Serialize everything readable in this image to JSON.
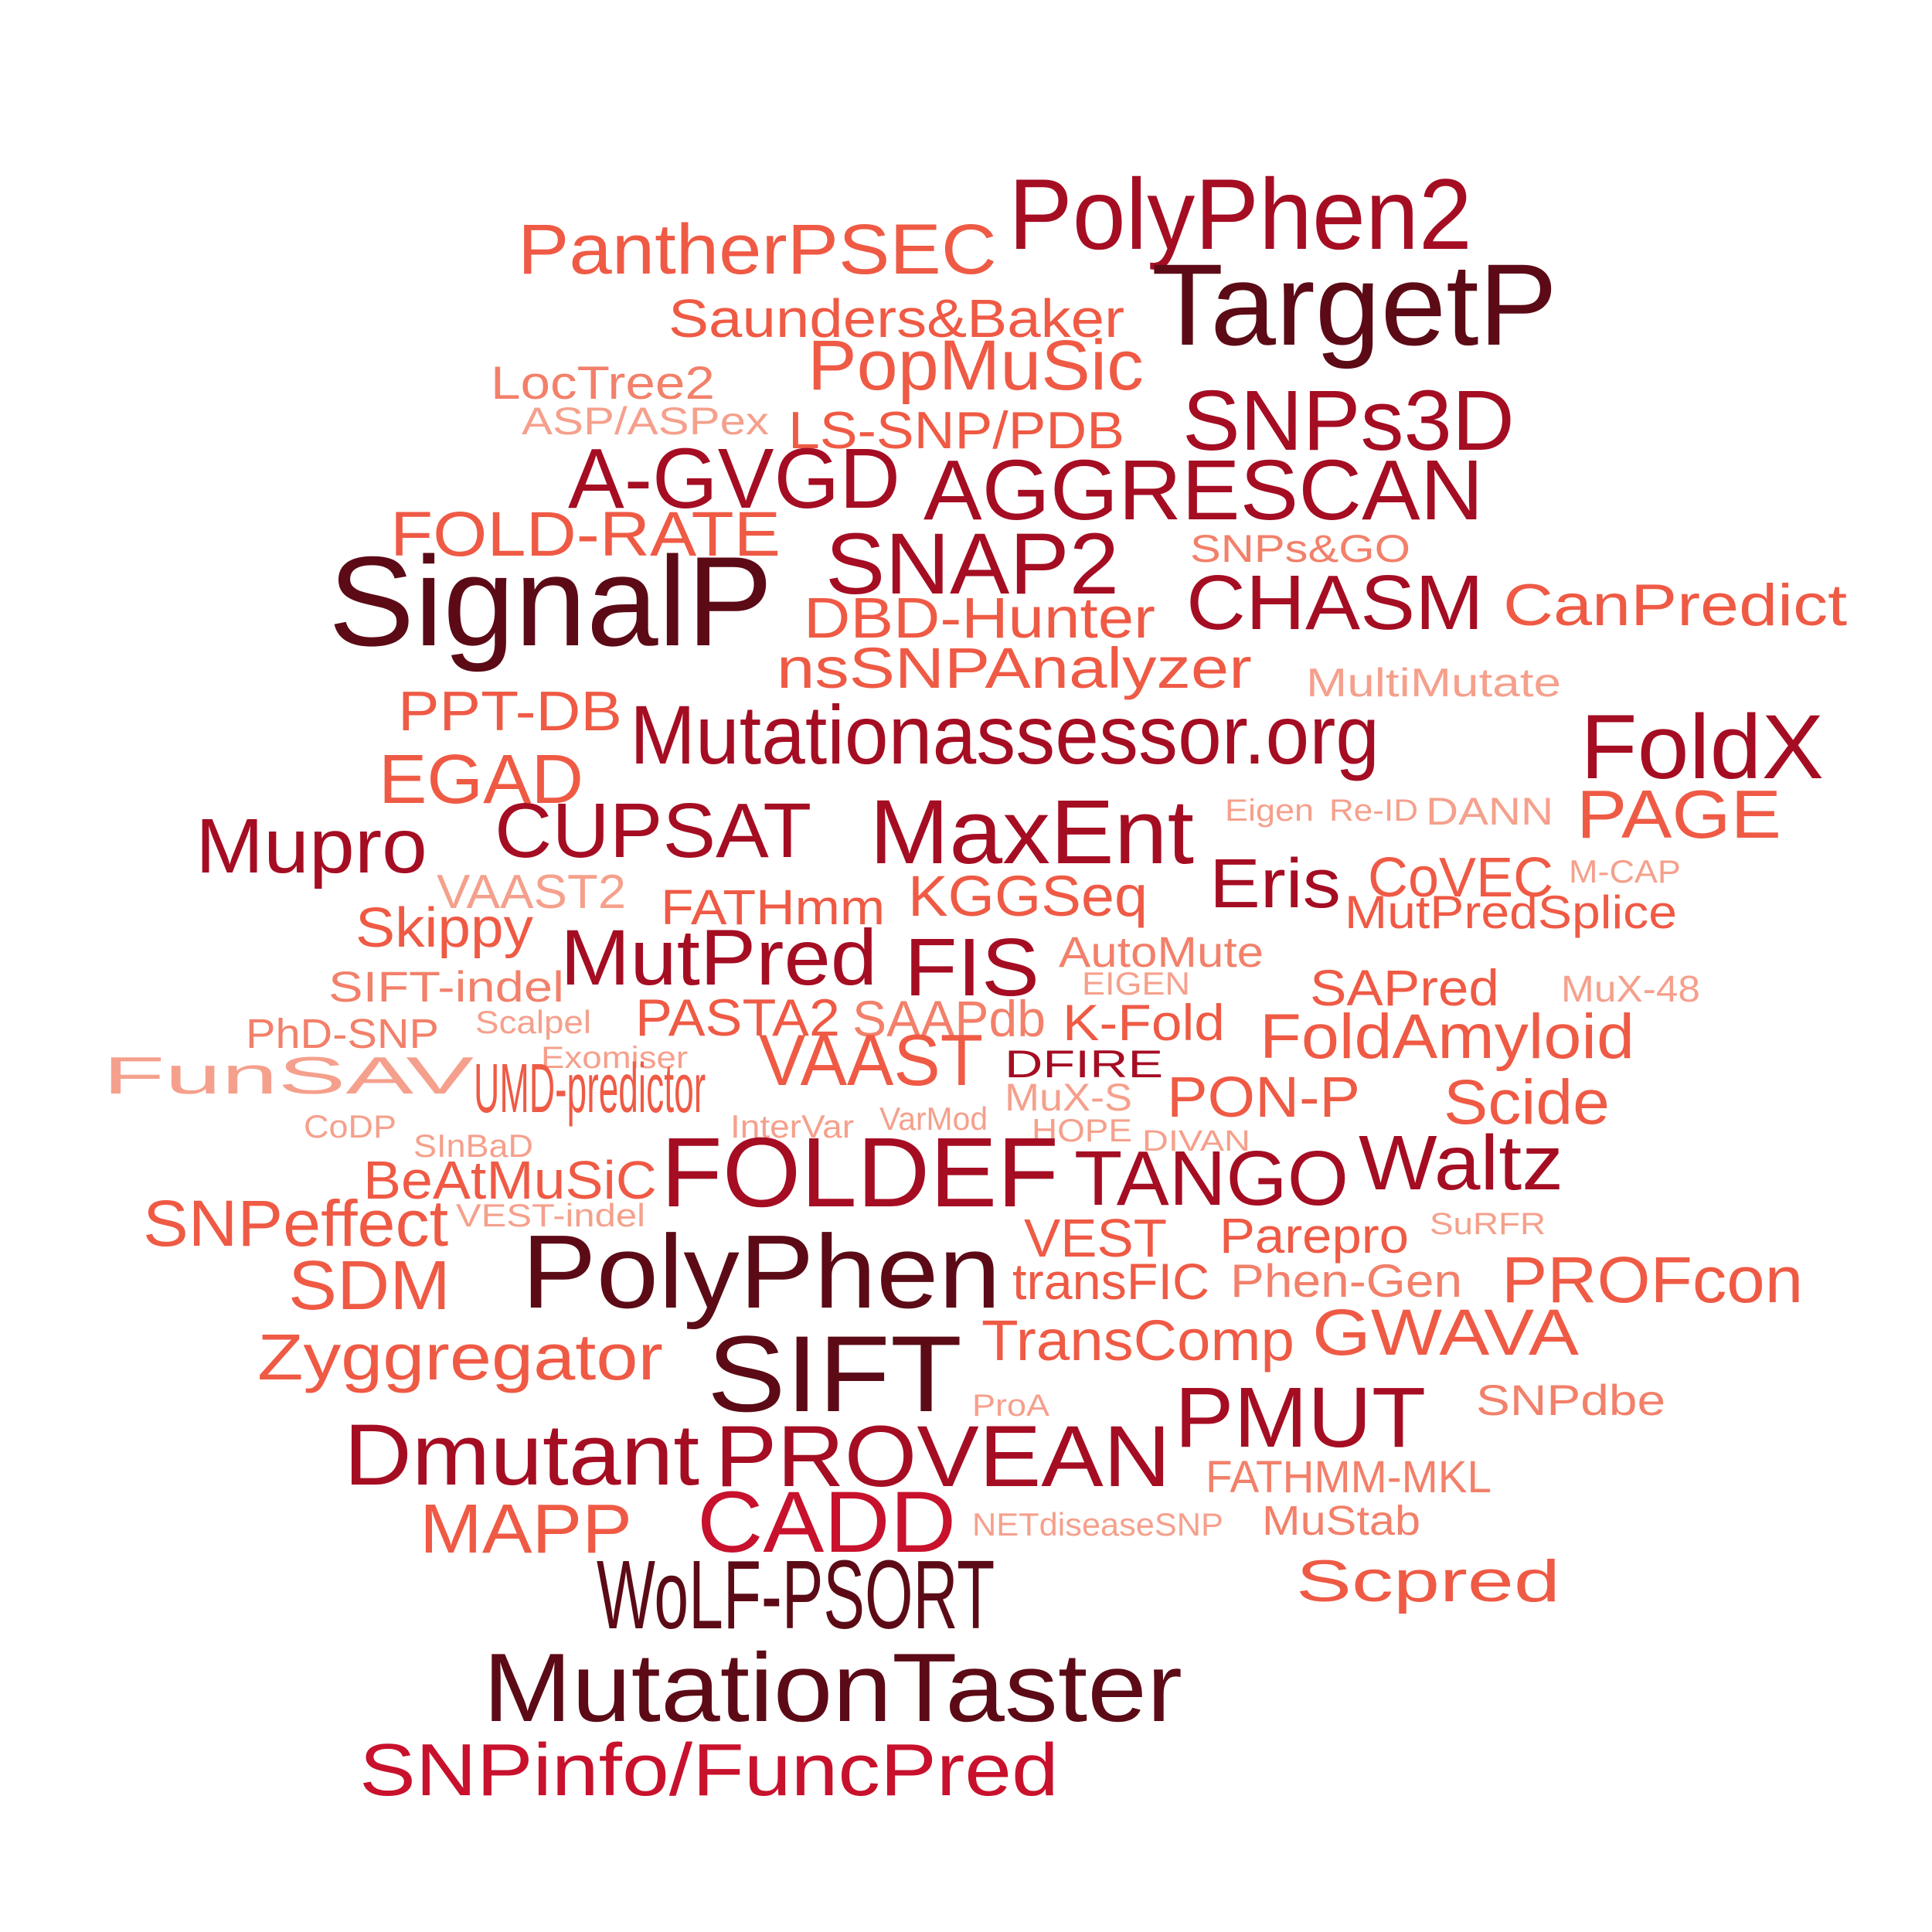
{
  "palette": {
    "darkest": "#5c0b16",
    "dark": "#a50d23",
    "medium": "#c8112c",
    "light": "#ef5a45",
    "lighter": "#f2806a",
    "lightest": "#f5a08c"
  },
  "words": [
    {
      "text": "PolyPhen2",
      "tone": "dark"
    },
    {
      "text": "PantherPSEC",
      "tone": "light"
    },
    {
      "text": "TargetP",
      "tone": "darkest"
    },
    {
      "text": "Saunders&Baker",
      "tone": "light"
    },
    {
      "text": "PopMuSic",
      "tone": "light"
    },
    {
      "text": "LocTree2",
      "tone": "lighter"
    },
    {
      "text": "ASP/ASPex",
      "tone": "lightest"
    },
    {
      "text": "LS-SNP/PDB",
      "tone": "light"
    },
    {
      "text": "SNPs3D",
      "tone": "dark"
    },
    {
      "text": "A-GVGD",
      "tone": "dark"
    },
    {
      "text": "AGGRESCAN",
      "tone": "dark"
    },
    {
      "text": "FOLD-RATE",
      "tone": "light"
    },
    {
      "text": "SNPs&GO",
      "tone": "lighter"
    },
    {
      "text": "SNAP2",
      "tone": "dark"
    },
    {
      "text": "SignalP",
      "tone": "darkest"
    },
    {
      "text": "CHASM",
      "tone": "dark"
    },
    {
      "text": "CanPredict",
      "tone": "light"
    },
    {
      "text": "DBD-Hunter",
      "tone": "light"
    },
    {
      "text": "nsSNPAnalyzer",
      "tone": "light"
    },
    {
      "text": "MultiMutate",
      "tone": "lightest"
    },
    {
      "text": "PPT-DB",
      "tone": "light"
    },
    {
      "text": "Mutationassessor.org",
      "tone": "dark"
    },
    {
      "text": "FoldX",
      "tone": "dark"
    },
    {
      "text": "EGAD",
      "tone": "light"
    },
    {
      "text": "Eigen",
      "tone": "lightest"
    },
    {
      "text": "Re-ID",
      "tone": "lightest"
    },
    {
      "text": "DANN",
      "tone": "lightest"
    },
    {
      "text": "PAGE",
      "tone": "light"
    },
    {
      "text": "Mupro",
      "tone": "dark"
    },
    {
      "text": "CUPSAT",
      "tone": "dark"
    },
    {
      "text": "MaxEnt",
      "tone": "dark"
    },
    {
      "text": "Eris",
      "tone": "dark"
    },
    {
      "text": "CoVEC",
      "tone": "light"
    },
    {
      "text": "M-CAP",
      "tone": "lightest"
    },
    {
      "text": "VAAST2",
      "tone": "lightest"
    },
    {
      "text": "FATHmm",
      "tone": "light"
    },
    {
      "text": "KGGSeq",
      "tone": "light"
    },
    {
      "text": "MutPredSplice",
      "tone": "light"
    },
    {
      "text": "Skippy",
      "tone": "light"
    },
    {
      "text": "MutPred",
      "tone": "dark"
    },
    {
      "text": "FIS",
      "tone": "dark"
    },
    {
      "text": "AutoMute",
      "tone": "lighter"
    },
    {
      "text": "SIFT-indel",
      "tone": "lighter"
    },
    {
      "text": "EIGEN",
      "tone": "lightest"
    },
    {
      "text": "SAPred",
      "tone": "light"
    },
    {
      "text": "MuX-48",
      "tone": "lightest"
    },
    {
      "text": "PhD-SNP",
      "tone": "lighter"
    },
    {
      "text": "Scalpel",
      "tone": "lightest"
    },
    {
      "text": "PASTA2",
      "tone": "light"
    },
    {
      "text": "SAAPdb",
      "tone": "lighter"
    },
    {
      "text": "K-Fold",
      "tone": "light"
    },
    {
      "text": "FoldAmyloid",
      "tone": "light"
    },
    {
      "text": "Exomiser",
      "tone": "lightest"
    },
    {
      "text": "DFIRE",
      "tone": "dark"
    },
    {
      "text": "FunSAV",
      "tone": "lightest"
    },
    {
      "text": "UMD-predictor",
      "tone": "light"
    },
    {
      "text": "VAAST",
      "tone": "light"
    },
    {
      "text": "MuX-S",
      "tone": "lightest"
    },
    {
      "text": "PON-P",
      "tone": "light"
    },
    {
      "text": "Scide",
      "tone": "light"
    },
    {
      "text": "CoDP",
      "tone": "lightest"
    },
    {
      "text": "SInBaD",
      "tone": "lightest"
    },
    {
      "text": "InterVar",
      "tone": "lightest"
    },
    {
      "text": "VarMod",
      "tone": "lightest"
    },
    {
      "text": "HOPE",
      "tone": "lightest"
    },
    {
      "text": "DIVAN",
      "tone": "lightest"
    },
    {
      "text": "FOLDEF",
      "tone": "dark"
    },
    {
      "text": "TANGO",
      "tone": "dark"
    },
    {
      "text": "Waltz",
      "tone": "dark"
    },
    {
      "text": "BeAtMuSiC",
      "tone": "light"
    },
    {
      "text": "VEST-indel",
      "tone": "lightest"
    },
    {
      "text": "SNPeffect",
      "tone": "light"
    },
    {
      "text": "SuRFR",
      "tone": "lightest"
    },
    {
      "text": "VEST",
      "tone": "light"
    },
    {
      "text": "Parepro",
      "tone": "light"
    },
    {
      "text": "SDM",
      "tone": "light"
    },
    {
      "text": "PolyPhen",
      "tone": "darkest"
    },
    {
      "text": "transFIC",
      "tone": "light"
    },
    {
      "text": "Phen-Gen",
      "tone": "lighter"
    },
    {
      "text": "PROFcon",
      "tone": "light"
    },
    {
      "text": "Zyggregator",
      "tone": "light"
    },
    {
      "text": "TransComp",
      "tone": "light"
    },
    {
      "text": "GWAVA",
      "tone": "light"
    },
    {
      "text": "SIFT",
      "tone": "darkest"
    },
    {
      "text": "SNPdbe",
      "tone": "lighter"
    },
    {
      "text": "ProA",
      "tone": "lightest"
    },
    {
      "text": "PMUT",
      "tone": "dark"
    },
    {
      "text": "Dmutant",
      "tone": "dark"
    },
    {
      "text": "PROVEAN",
      "tone": "dark"
    },
    {
      "text": "FATHMM-MKL",
      "tone": "lighter"
    },
    {
      "text": "MAPP",
      "tone": "light"
    },
    {
      "text": "CADD",
      "tone": "medium"
    },
    {
      "text": "NETdiseaseSNP",
      "tone": "lightest"
    },
    {
      "text": "MuStab",
      "tone": "lighter"
    },
    {
      "text": "WoLF-PSORT",
      "tone": "darkest"
    },
    {
      "text": "Scpred",
      "tone": "light"
    },
    {
      "text": "MutationTaster",
      "tone": "darkest"
    },
    {
      "text": "SNPinfo/FuncPred",
      "tone": "medium"
    }
  ]
}
